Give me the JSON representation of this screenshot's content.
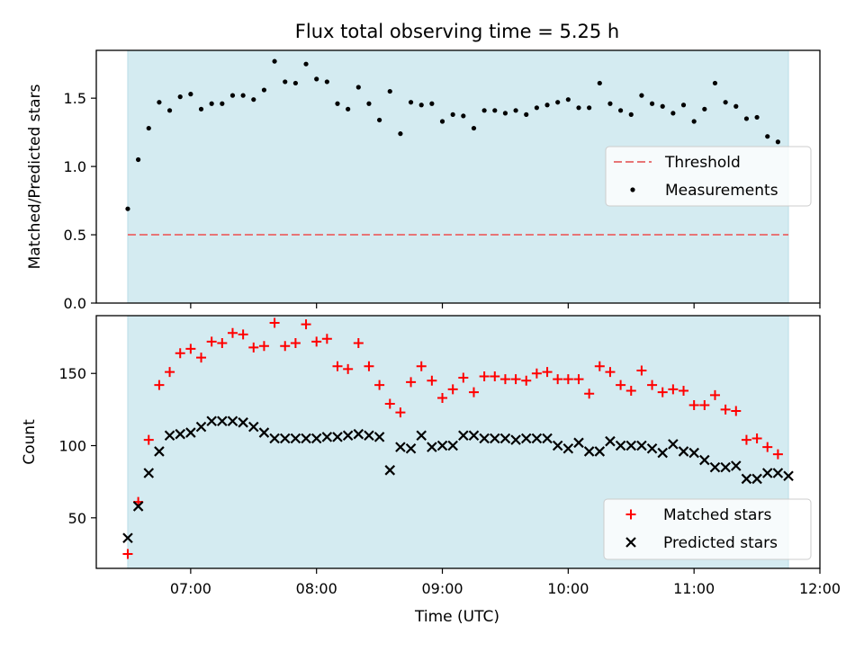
{
  "figure": {
    "title": "Flux total observing time = 5.25 h",
    "xlabel": "Time (UTC)"
  },
  "chart_data": [
    {
      "type": "scatter",
      "panel": "top",
      "title": "Flux total observing time = 5.25 h",
      "xlabel": "",
      "ylabel": "Matched/Predicted stars",
      "xlim": [
        "06:15",
        "12:00"
      ],
      "ylim": [
        0,
        1.85
      ],
      "yticks": [
        0.0,
        0.5,
        1.0,
        1.5
      ],
      "ytick_labels": [
        "0.0",
        "0.5",
        "1.0",
        "1.5"
      ],
      "xticks": [
        "07:00",
        "08:00",
        "09:00",
        "10:00",
        "11:00",
        "12:00"
      ],
      "shaded_region": {
        "start": "06:30",
        "end": "11:45",
        "color": "#d4ebf1"
      },
      "grid": false,
      "legend": {
        "position": "center-right",
        "entries": [
          "Threshold",
          "Measurements"
        ]
      },
      "series": [
        {
          "name": "Threshold",
          "kind": "dashed-line",
          "color": "#e77576",
          "x": [
            "06:30",
            "11:45"
          ],
          "values": [
            0.5,
            0.5
          ]
        },
        {
          "name": "Measurements",
          "kind": "dot",
          "color": "#000000",
          "x": [
            "06:30",
            "06:35",
            "06:40",
            "06:45",
            "06:50",
            "06:55",
            "07:00",
            "07:05",
            "07:10",
            "07:15",
            "07:20",
            "07:25",
            "07:30",
            "07:35",
            "07:40",
            "07:45",
            "07:50",
            "07:55",
            "08:00",
            "08:05",
            "08:10",
            "08:15",
            "08:20",
            "08:25",
            "08:30",
            "08:35",
            "08:40",
            "08:45",
            "08:50",
            "08:55",
            "09:00",
            "09:05",
            "09:10",
            "09:15",
            "09:20",
            "09:25",
            "09:30",
            "09:35",
            "09:40",
            "09:45",
            "09:50",
            "09:55",
            "10:00",
            "10:05",
            "10:10",
            "10:15",
            "10:20",
            "10:25",
            "10:30",
            "10:35",
            "10:40",
            "10:45",
            "10:50",
            "10:55",
            "11:00",
            "11:05",
            "11:10",
            "11:15",
            "11:20",
            "11:25",
            "11:30",
            "11:35",
            "11:40"
          ],
          "values": [
            0.69,
            1.05,
            1.28,
            1.47,
            1.41,
            1.51,
            1.53,
            1.42,
            1.46,
            1.46,
            1.52,
            1.52,
            1.49,
            1.56,
            1.77,
            1.62,
            1.61,
            1.75,
            1.64,
            1.62,
            1.46,
            1.42,
            1.58,
            1.46,
            1.34,
            1.55,
            1.24,
            1.47,
            1.45,
            1.46,
            1.33,
            1.38,
            1.37,
            1.28,
            1.41,
            1.41,
            1.39,
            1.41,
            1.38,
            1.43,
            1.45,
            1.47,
            1.49,
            1.43,
            1.43,
            1.61,
            1.46,
            1.41,
            1.38,
            1.52,
            1.46,
            1.44,
            1.39,
            1.45,
            1.33,
            1.42,
            1.61,
            1.47,
            1.44,
            1.35,
            1.36,
            1.22,
            1.18
          ]
        }
      ]
    },
    {
      "type": "scatter",
      "panel": "bottom",
      "title": "",
      "xlabel": "Time (UTC)",
      "ylabel": "Count",
      "xlim": [
        "06:15",
        "12:00"
      ],
      "ylim": [
        15,
        190
      ],
      "yticks": [
        50,
        100,
        150
      ],
      "ytick_labels": [
        "50",
        "100",
        "150"
      ],
      "xticks": [
        "07:00",
        "08:00",
        "09:00",
        "10:00",
        "11:00",
        "12:00"
      ],
      "xtick_labels": [
        "07:00",
        "08:00",
        "09:00",
        "10:00",
        "11:00",
        "12:00"
      ],
      "shaded_region": {
        "start": "06:30",
        "end": "11:45",
        "color": "#d4ebf1"
      },
      "grid": false,
      "legend": {
        "position": "bottom-right",
        "entries": [
          "Matched stars",
          "Predicted stars"
        ]
      },
      "series": [
        {
          "name": "Matched stars",
          "marker": "plus",
          "color": "#ff0000",
          "x": [
            "06:30",
            "06:35",
            "06:40",
            "06:45",
            "06:50",
            "06:55",
            "07:00",
            "07:05",
            "07:10",
            "07:15",
            "07:20",
            "07:25",
            "07:30",
            "07:35",
            "07:40",
            "07:45",
            "07:50",
            "07:55",
            "08:00",
            "08:05",
            "08:10",
            "08:15",
            "08:20",
            "08:25",
            "08:30",
            "08:35",
            "08:40",
            "08:45",
            "08:50",
            "08:55",
            "09:00",
            "09:05",
            "09:10",
            "09:15",
            "09:20",
            "09:25",
            "09:30",
            "09:35",
            "09:40",
            "09:45",
            "09:50",
            "09:55",
            "10:00",
            "10:05",
            "10:10",
            "10:15",
            "10:20",
            "10:25",
            "10:30",
            "10:35",
            "10:40",
            "10:45",
            "10:50",
            "10:55",
            "11:00",
            "11:05",
            "11:10",
            "11:15",
            "11:20",
            "11:25",
            "11:30",
            "11:35",
            "11:40"
          ],
          "values": [
            25,
            61,
            104,
            142,
            151,
            164,
            167,
            161,
            172,
            171,
            178,
            177,
            168,
            169,
            185,
            169,
            171,
            184,
            172,
            174,
            155,
            153,
            171,
            155,
            142,
            129,
            123,
            144,
            155,
            145,
            133,
            139,
            147,
            137,
            148,
            148,
            146,
            146,
            145,
            150,
            151,
            146,
            146,
            146,
            136,
            155,
            151,
            142,
            138,
            152,
            142,
            137,
            139,
            138,
            128,
            128,
            135,
            125,
            124,
            104,
            105,
            99,
            94
          ]
        },
        {
          "name": "Predicted stars",
          "marker": "x",
          "color": "#000000",
          "x": [
            "06:30",
            "06:35",
            "06:40",
            "06:45",
            "06:50",
            "06:55",
            "07:00",
            "07:05",
            "07:10",
            "07:15",
            "07:20",
            "07:25",
            "07:30",
            "07:35",
            "07:40",
            "07:45",
            "07:50",
            "07:55",
            "08:00",
            "08:05",
            "08:10",
            "08:15",
            "08:20",
            "08:25",
            "08:30",
            "08:35",
            "08:40",
            "08:45",
            "08:50",
            "08:55",
            "09:00",
            "09:05",
            "09:10",
            "09:15",
            "09:20",
            "09:25",
            "09:30",
            "09:35",
            "09:40",
            "09:45",
            "09:50",
            "09:55",
            "10:00",
            "10:05",
            "10:10",
            "10:15",
            "10:20",
            "10:25",
            "10:30",
            "10:35",
            "10:40",
            "10:45",
            "10:50",
            "10:55",
            "11:00",
            "11:05",
            "11:10",
            "11:15",
            "11:20",
            "11:25",
            "11:30",
            "11:35",
            "11:40",
            "11:45"
          ],
          "values": [
            36,
            58,
            81,
            96,
            107,
            108,
            109,
            113,
            117,
            117,
            117,
            116,
            113,
            109,
            105,
            105,
            105,
            105,
            105,
            106,
            106,
            107,
            108,
            107,
            106,
            83,
            99,
            98,
            107,
            99,
            100,
            100,
            107,
            107,
            105,
            105,
            105,
            104,
            105,
            105,
            105,
            100,
            98,
            102,
            96,
            96,
            103,
            100,
            100,
            100,
            98,
            95,
            101,
            96,
            95,
            90,
            85,
            85,
            86,
            77,
            77,
            81,
            81,
            79
          ]
        }
      ]
    }
  ]
}
